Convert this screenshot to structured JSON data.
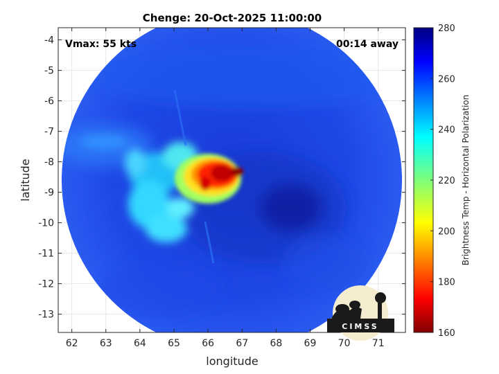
{
  "chart_data": {
    "type": "heatmap",
    "title": "Chenge: 20-Oct-2025 11:00:00",
    "xlabel": "longitude",
    "ylabel": "latitude",
    "xlim": [
      61.6,
      71.8
    ],
    "ylim": [
      -13.6,
      -3.6
    ],
    "xticks": [
      62,
      63,
      64,
      65,
      66,
      67,
      68,
      69,
      70,
      71
    ],
    "yticks": [
      -4,
      -5,
      -6,
      -7,
      -8,
      -9,
      -10,
      -11,
      -12,
      -13
    ],
    "grid": true,
    "colorbar": {
      "label": "Brightness Temp - Horizontal Polarization",
      "min": 160,
      "max": 280,
      "ticks": [
        280,
        260,
        240,
        220,
        200,
        180,
        160
      ],
      "colormap": "jet"
    },
    "swath": {
      "center": [
        66.7,
        -8.6
      ],
      "radius_deg": 5.0
    },
    "features": [
      {
        "lon": 66.2,
        "lat": -8.7,
        "value": 185
      },
      {
        "lon": 66.6,
        "lat": -8.5,
        "value": 170
      },
      {
        "lon": 65.4,
        "lat": -8.9,
        "value": 215
      },
      {
        "lon": 64.2,
        "lat": -9.3,
        "value": 235
      },
      {
        "lon": 63.8,
        "lat": -7.7,
        "value": 245
      },
      {
        "lon": 68.4,
        "lat": -9.5,
        "value": 270
      }
    ],
    "annotations": {
      "vmax": "Vmax: 55 kts",
      "time_offset": "00:14 away"
    },
    "logo_text": "CIMSS"
  }
}
